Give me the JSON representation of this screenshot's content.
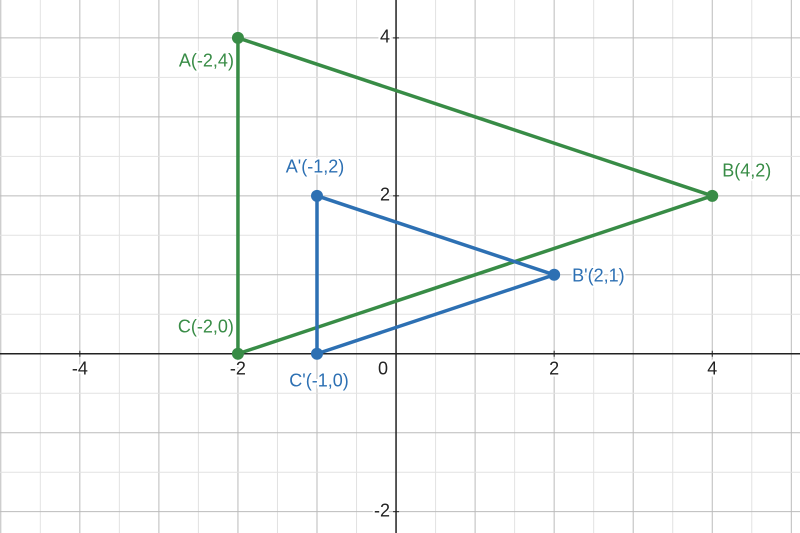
{
  "chart_data": {
    "type": "polygon",
    "xlim": [
      -5.01,
      5.11
    ],
    "ylim": [
      -2.27,
      4.48
    ],
    "xticks": [
      -4,
      -2,
      0,
      2,
      4
    ],
    "yticks": [
      -2,
      2,
      4
    ],
    "grid": true,
    "grid_step": 0.5,
    "series": [
      {
        "color": "#388c46",
        "x": [
          -2,
          4,
          -2
        ],
        "y": [
          4,
          2,
          0
        ],
        "labels": [
          "A(-2,4)",
          "B(4,2)",
          "C(-2,0)"
        ]
      },
      {
        "color": "#2d70b3",
        "x": [
          -1,
          2,
          -1
        ],
        "y": [
          2,
          1,
          0
        ],
        "labels": [
          "A'(-1,2)",
          "B'(2,1)",
          "C'(-1,0)"
        ]
      }
    ]
  }
}
